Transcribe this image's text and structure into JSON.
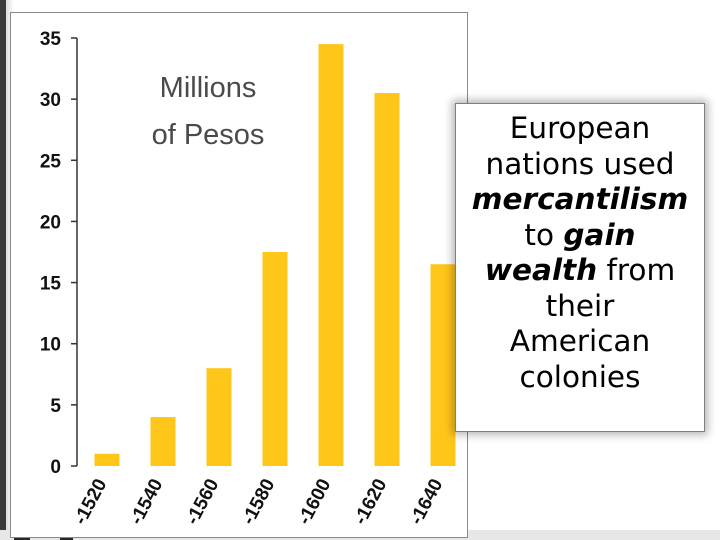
{
  "chart_data": {
    "type": "bar",
    "title": "Millions of Pesos",
    "title_lines": [
      "Millions",
      "of Pesos"
    ],
    "categories": [
      "1520",
      "1540",
      "1560",
      "1580",
      "1600",
      "1620",
      "1640"
    ],
    "category_labels": [
      "-1520",
      "-1540",
      "-1560",
      "-1580",
      "-1600",
      "-1620",
      "-1640"
    ],
    "values": [
      1,
      4,
      8,
      17.5,
      34.5,
      30.5,
      16.5
    ],
    "ylim": [
      0,
      35
    ],
    "yticks": [
      0,
      5,
      10,
      15,
      20,
      25,
      30,
      35
    ],
    "xlabel": "",
    "ylabel": "",
    "grid": false,
    "bar_color": "#ffc61a"
  },
  "callout": {
    "line1": "European",
    "line2": "nations used",
    "line3_em": "mercantilism",
    "line4_plain": "to ",
    "line4_em": "gain",
    "line5_em": "wealth",
    "line5_plain": " from",
    "line6": "their",
    "line7": "American",
    "line8": "colonies"
  },
  "colors": {
    "bar": "#ffc61a",
    "axis": "#333333",
    "text": "#000000",
    "title_text": "#4a4a4a"
  }
}
